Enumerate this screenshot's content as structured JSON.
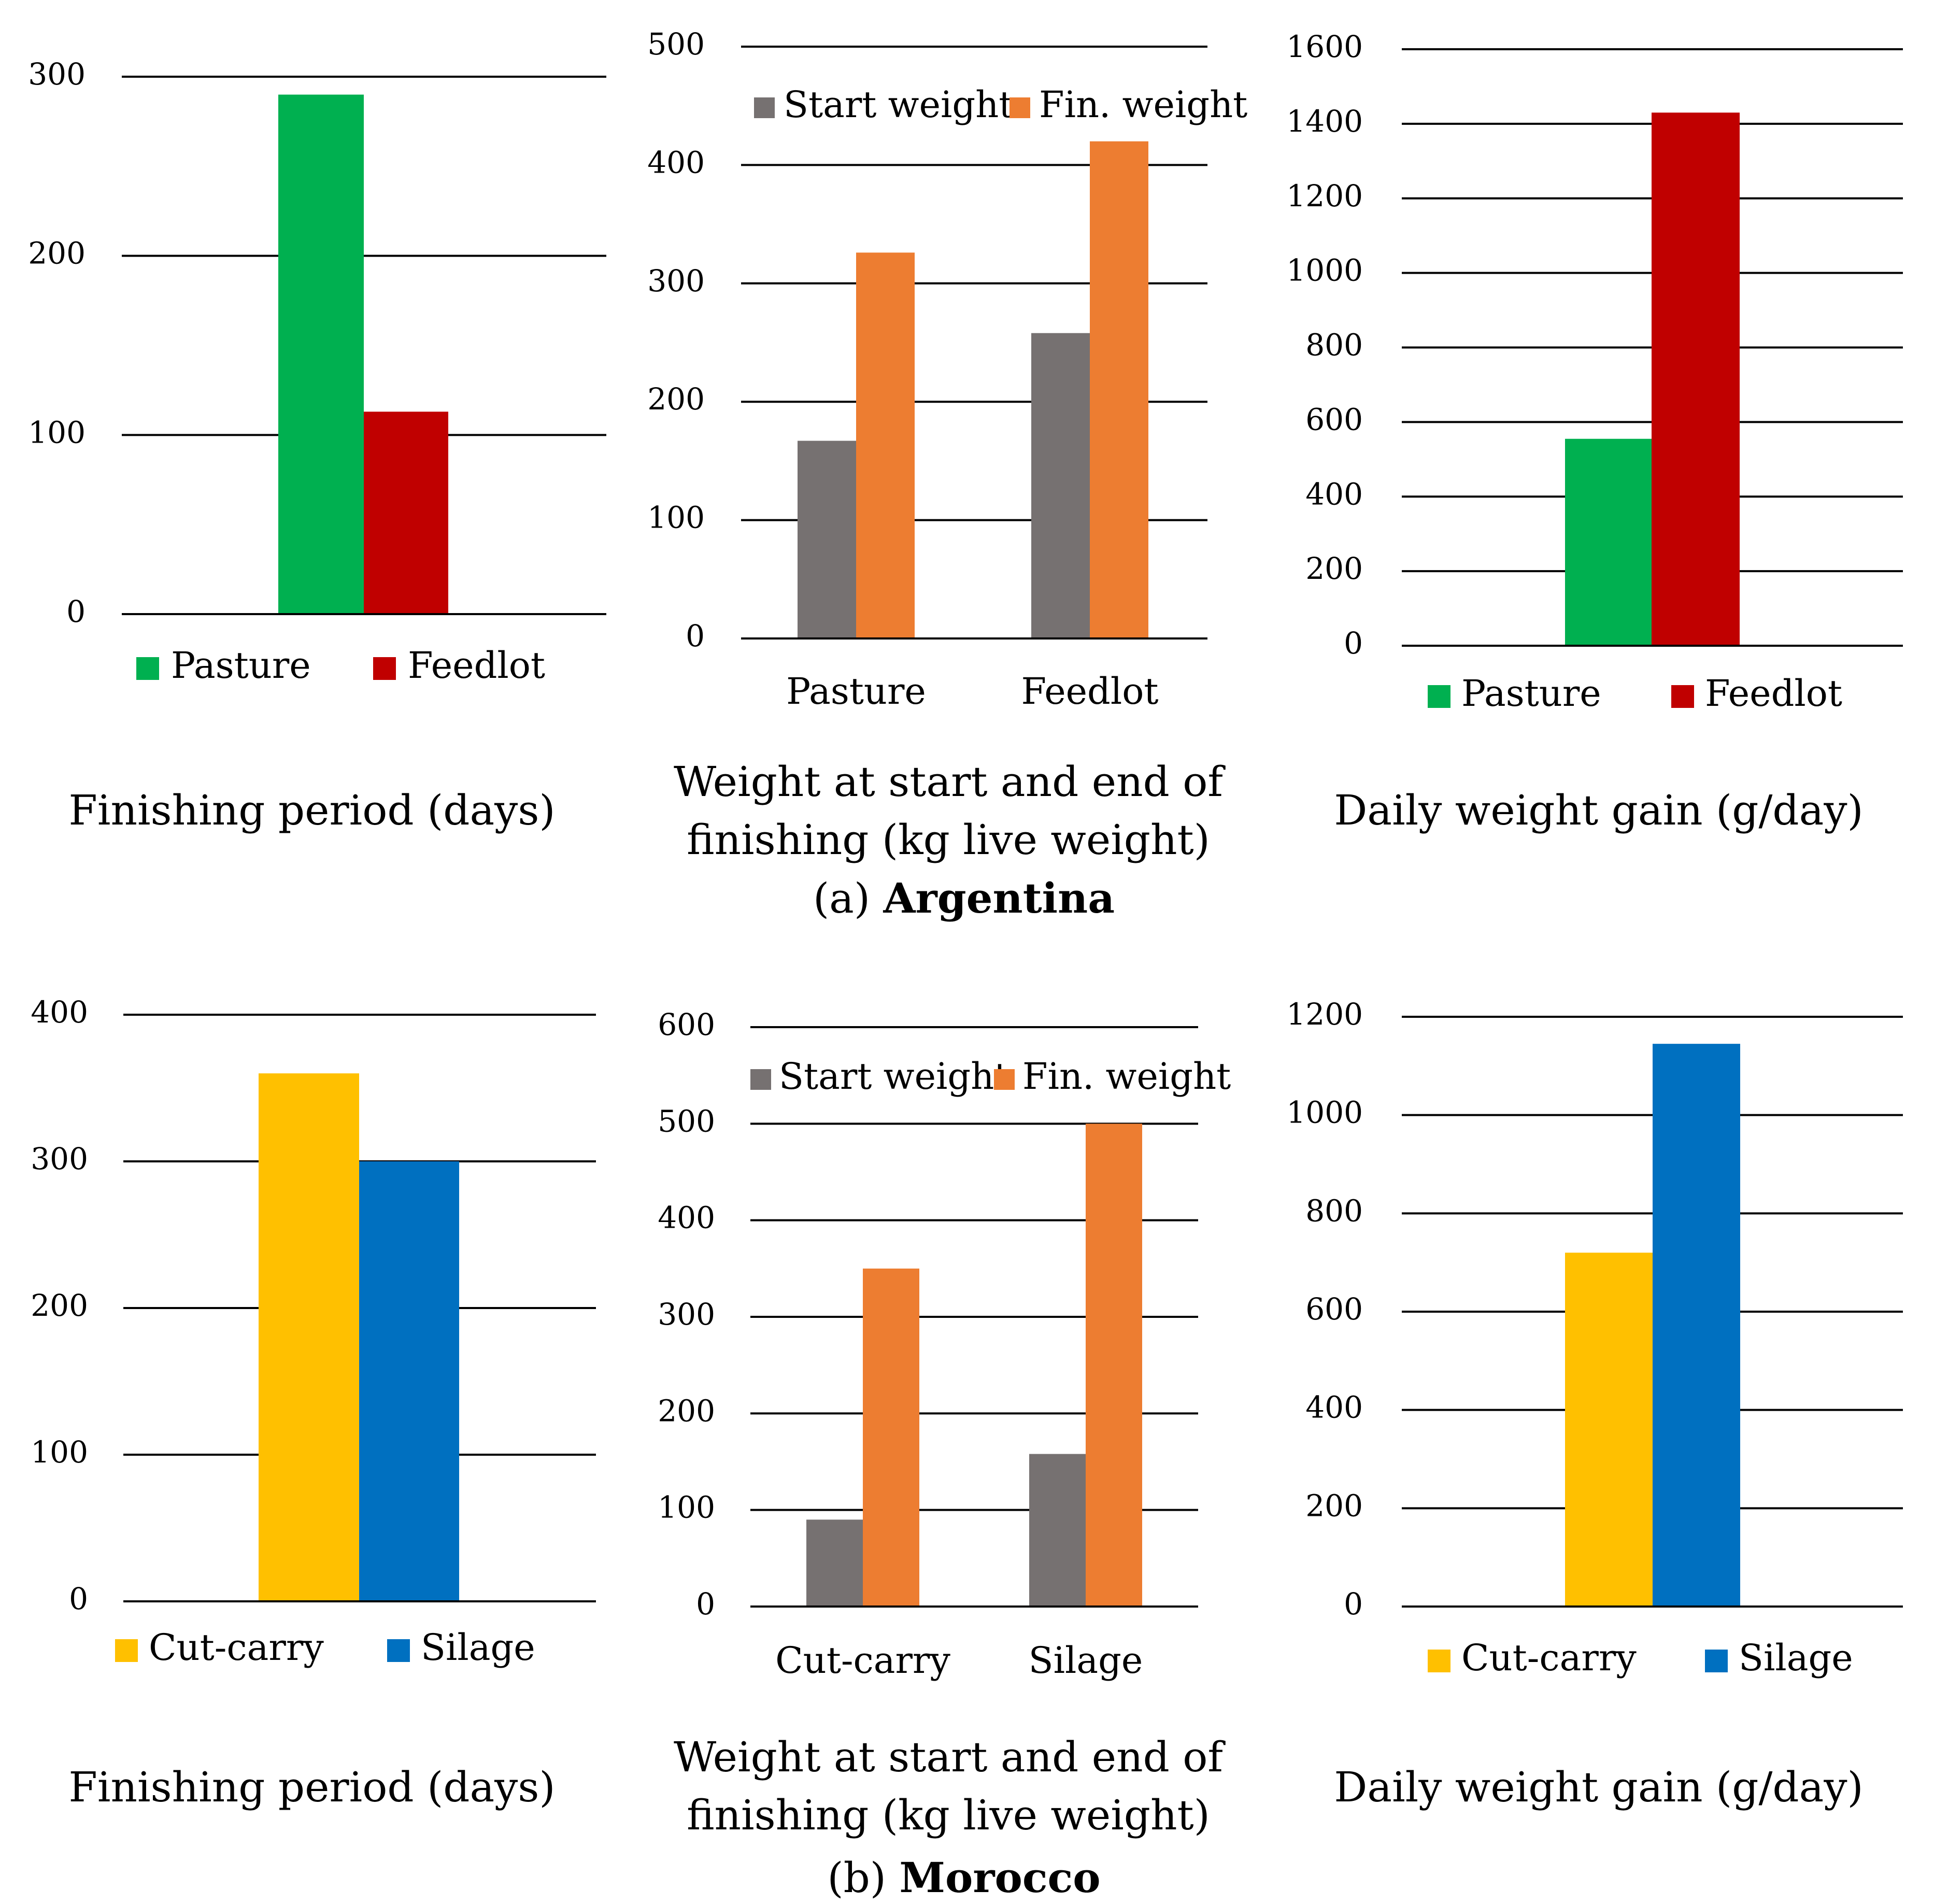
{
  "charts": [
    {
      "type": "bar",
      "title": "Finishing period (days)",
      "yticks": [
        "0",
        "100",
        "200",
        "300"
      ],
      "ylim": [
        0,
        300
      ],
      "legend": {
        "items": [
          "Pasture",
          "Feedlot"
        ],
        "placement": "bottom"
      },
      "series": [
        {
          "name": "Pasture",
          "value": 290,
          "color": "#00b050"
        },
        {
          "name": "Feedlot",
          "value": 113,
          "color": "#c00000"
        }
      ]
    },
    {
      "type": "bar",
      "title_lines": [
        "Weight at start and end of",
        "finishing (kg live weight)"
      ],
      "yticks": [
        "0",
        "100",
        "200",
        "300",
        "400",
        "500"
      ],
      "ylim": [
        0,
        500
      ],
      "categories": [
        "Pasture",
        "Feedlot"
      ],
      "legend": {
        "items": [
          "Start weight",
          "Fin. weight"
        ],
        "placement": "top"
      },
      "series": [
        {
          "name": "Start weight",
          "values": [
            167,
            258
          ],
          "color": "#767171"
        },
        {
          "name": "Fin. weight",
          "values": [
            326,
            420
          ],
          "color": "#ed7d31"
        }
      ]
    },
    {
      "type": "bar",
      "title": "Daily weight gain (g/day)",
      "yticks": [
        "0",
        "200",
        "400",
        "600",
        "800",
        "1000",
        "1200",
        "1400",
        "1600"
      ],
      "ylim": [
        0,
        1600
      ],
      "legend": {
        "items": [
          "Pasture",
          "Feedlot"
        ],
        "placement": "bottom"
      },
      "series": [
        {
          "name": "Pasture",
          "value": 555,
          "color": "#00b050"
        },
        {
          "name": "Feedlot",
          "value": 1430,
          "color": "#c00000"
        }
      ]
    },
    {
      "type": "bar",
      "title": "Finishing period (days)",
      "yticks": [
        "0",
        "100",
        "200",
        "300",
        "400"
      ],
      "ylim": [
        0,
        400
      ],
      "legend": {
        "items": [
          "Cut-carry",
          "Silage"
        ],
        "placement": "bottom"
      },
      "series": [
        {
          "name": "Cut-carry",
          "value": 360,
          "color": "#ffc000"
        },
        {
          "name": "Silage",
          "value": 300,
          "color": "#0070c0"
        }
      ]
    },
    {
      "type": "bar",
      "title_lines": [
        "Weight at start and end of",
        "finishing (kg live weight)"
      ],
      "yticks": [
        "0",
        "100",
        "200",
        "300",
        "400",
        "500",
        "600"
      ],
      "ylim": [
        0,
        600
      ],
      "categories": [
        "Cut-carry",
        "Silage"
      ],
      "legend": {
        "items": [
          "Start weight",
          "Fin. weight"
        ],
        "placement": "top"
      },
      "series": [
        {
          "name": "Start weight",
          "values": [
            90,
            158
          ],
          "color": "#767171"
        },
        {
          "name": "Fin. weight",
          "values": [
            350,
            500
          ],
          "color": "#ed7d31"
        }
      ]
    },
    {
      "type": "bar",
      "title": "Daily weight gain (g/day)",
      "yticks": [
        "0",
        "200",
        "400",
        "600",
        "800",
        "1000",
        "1200"
      ],
      "ylim": [
        0,
        1200
      ],
      "legend": {
        "items": [
          "Cut-carry",
          "Silage"
        ],
        "placement": "bottom"
      },
      "series": [
        {
          "name": "Cut-carry",
          "value": 720,
          "color": "#ffc000"
        },
        {
          "name": "Silage",
          "value": 1145,
          "color": "#0070c0"
        }
      ]
    }
  ],
  "captions": [
    {
      "label": "(a)",
      "country": "Argentina"
    },
    {
      "label": "(b)",
      "country": "Morocco"
    }
  ],
  "chart_data": [
    {
      "type": "bar",
      "title": "Finishing period (days)",
      "categories": [
        "Pasture",
        "Feedlot"
      ],
      "values": [
        290,
        113
      ],
      "ylim": [
        0,
        300
      ],
      "legend": "bottom",
      "panel": "(a) Argentina"
    },
    {
      "type": "bar",
      "title": "Weight at start and end of finishing (kg live weight)",
      "categories": [
        "Pasture",
        "Feedlot"
      ],
      "series": [
        {
          "name": "Start weight",
          "values": [
            167,
            258
          ]
        },
        {
          "name": "Fin. weight",
          "values": [
            326,
            420
          ]
        }
      ],
      "ylim": [
        0,
        500
      ],
      "legend": "top",
      "panel": "(a) Argentina"
    },
    {
      "type": "bar",
      "title": "Daily weight gain (g/day)",
      "categories": [
        "Pasture",
        "Feedlot"
      ],
      "values": [
        555,
        1430
      ],
      "ylim": [
        0,
        1600
      ],
      "legend": "bottom",
      "panel": "(a) Argentina"
    },
    {
      "type": "bar",
      "title": "Finishing period (days)",
      "categories": [
        "Cut-carry",
        "Silage"
      ],
      "values": [
        360,
        300
      ],
      "ylim": [
        0,
        400
      ],
      "legend": "bottom",
      "panel": "(b) Morocco"
    },
    {
      "type": "bar",
      "title": "Weight at start and end of finishing (kg live weight)",
      "categories": [
        "Cut-carry",
        "Silage"
      ],
      "series": [
        {
          "name": "Start weight",
          "values": [
            90,
            158
          ]
        },
        {
          "name": "Fin. weight",
          "values": [
            350,
            500
          ]
        }
      ],
      "ylim": [
        0,
        600
      ],
      "legend": "top",
      "panel": "(b) Morocco"
    },
    {
      "type": "bar",
      "title": "Daily weight gain (g/day)",
      "categories": [
        "Cut-carry",
        "Silage"
      ],
      "values": [
        720,
        1145
      ],
      "ylim": [
        0,
        1200
      ],
      "legend": "bottom",
      "panel": "(b) Morocco"
    }
  ]
}
